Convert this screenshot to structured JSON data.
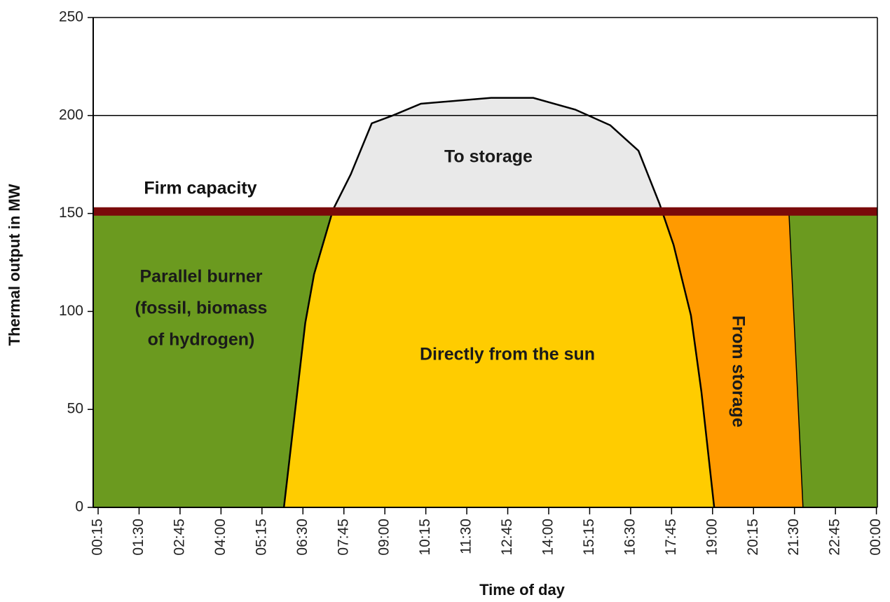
{
  "chart_data": {
    "type": "area",
    "xlabel": "Time of day",
    "ylabel": "Thermal output in MW",
    "x": [
      5.92,
      6.57,
      6.84,
      7.42,
      7.96,
      8.6,
      9.24,
      10.1,
      12.24,
      13.53,
      14.81,
      15.88,
      16.74,
      17.38,
      17.81,
      18.34,
      18.66,
      19.05
    ],
    "values": [
      0,
      94,
      119,
      152,
      170,
      196,
      200,
      206,
      209,
      209,
      203,
      195,
      182,
      155,
      134,
      98,
      59,
      0
    ],
    "line_color": "#000000",
    "firm_capacity": {
      "label": "Firm capacity",
      "value": 151,
      "color": "#7a0a0a"
    },
    "storage_end": {
      "x": [
        21.33,
        21.76
      ],
      "values": [
        151,
        0
      ]
    },
    "regions": {
      "burner": {
        "label": [
          "Parallel burner",
          "(fossil, biomass",
          "of hydrogen)"
        ],
        "color": "#6b9a1f"
      },
      "sun": {
        "label": "Directly from the sun",
        "color": "#ffcc00"
      },
      "to_storage": {
        "label": "To storage",
        "color": "#e9e9e9"
      },
      "from_storage": {
        "label": "From storage",
        "color": "#ff9a00"
      }
    },
    "grid_lines": [
      200
    ],
    "xlim": [
      0.1,
      24.03
    ],
    "ylim": [
      0,
      250
    ],
    "yticks": [
      0,
      50,
      100,
      150,
      200,
      250
    ],
    "xticks": [
      {
        "value": 0.25,
        "label": "00:15"
      },
      {
        "value": 1.5,
        "label": "01:30"
      },
      {
        "value": 2.75,
        "label": "02:45"
      },
      {
        "value": 4,
        "label": "04:00"
      },
      {
        "value": 5.25,
        "label": "05:15"
      },
      {
        "value": 6.5,
        "label": "06:30"
      },
      {
        "value": 7.75,
        "label": "07:45"
      },
      {
        "value": 9,
        "label": "09:00"
      },
      {
        "value": 10.25,
        "label": "10:15"
      },
      {
        "value": 11.5,
        "label": "11:30"
      },
      {
        "value": 12.75,
        "label": "12:45"
      },
      {
        "value": 14,
        "label": "14:00"
      },
      {
        "value": 15.25,
        "label": "15:15"
      },
      {
        "value": 16.5,
        "label": "16:30"
      },
      {
        "value": 17.75,
        "label": "17:45"
      },
      {
        "value": 19,
        "label": "19:00"
      },
      {
        "value": 20.25,
        "label": "20:15"
      },
      {
        "value": 21.5,
        "label": "21:30"
      },
      {
        "value": 22.75,
        "label": "22:45"
      },
      {
        "value": 24,
        "label": "00:00"
      }
    ]
  }
}
